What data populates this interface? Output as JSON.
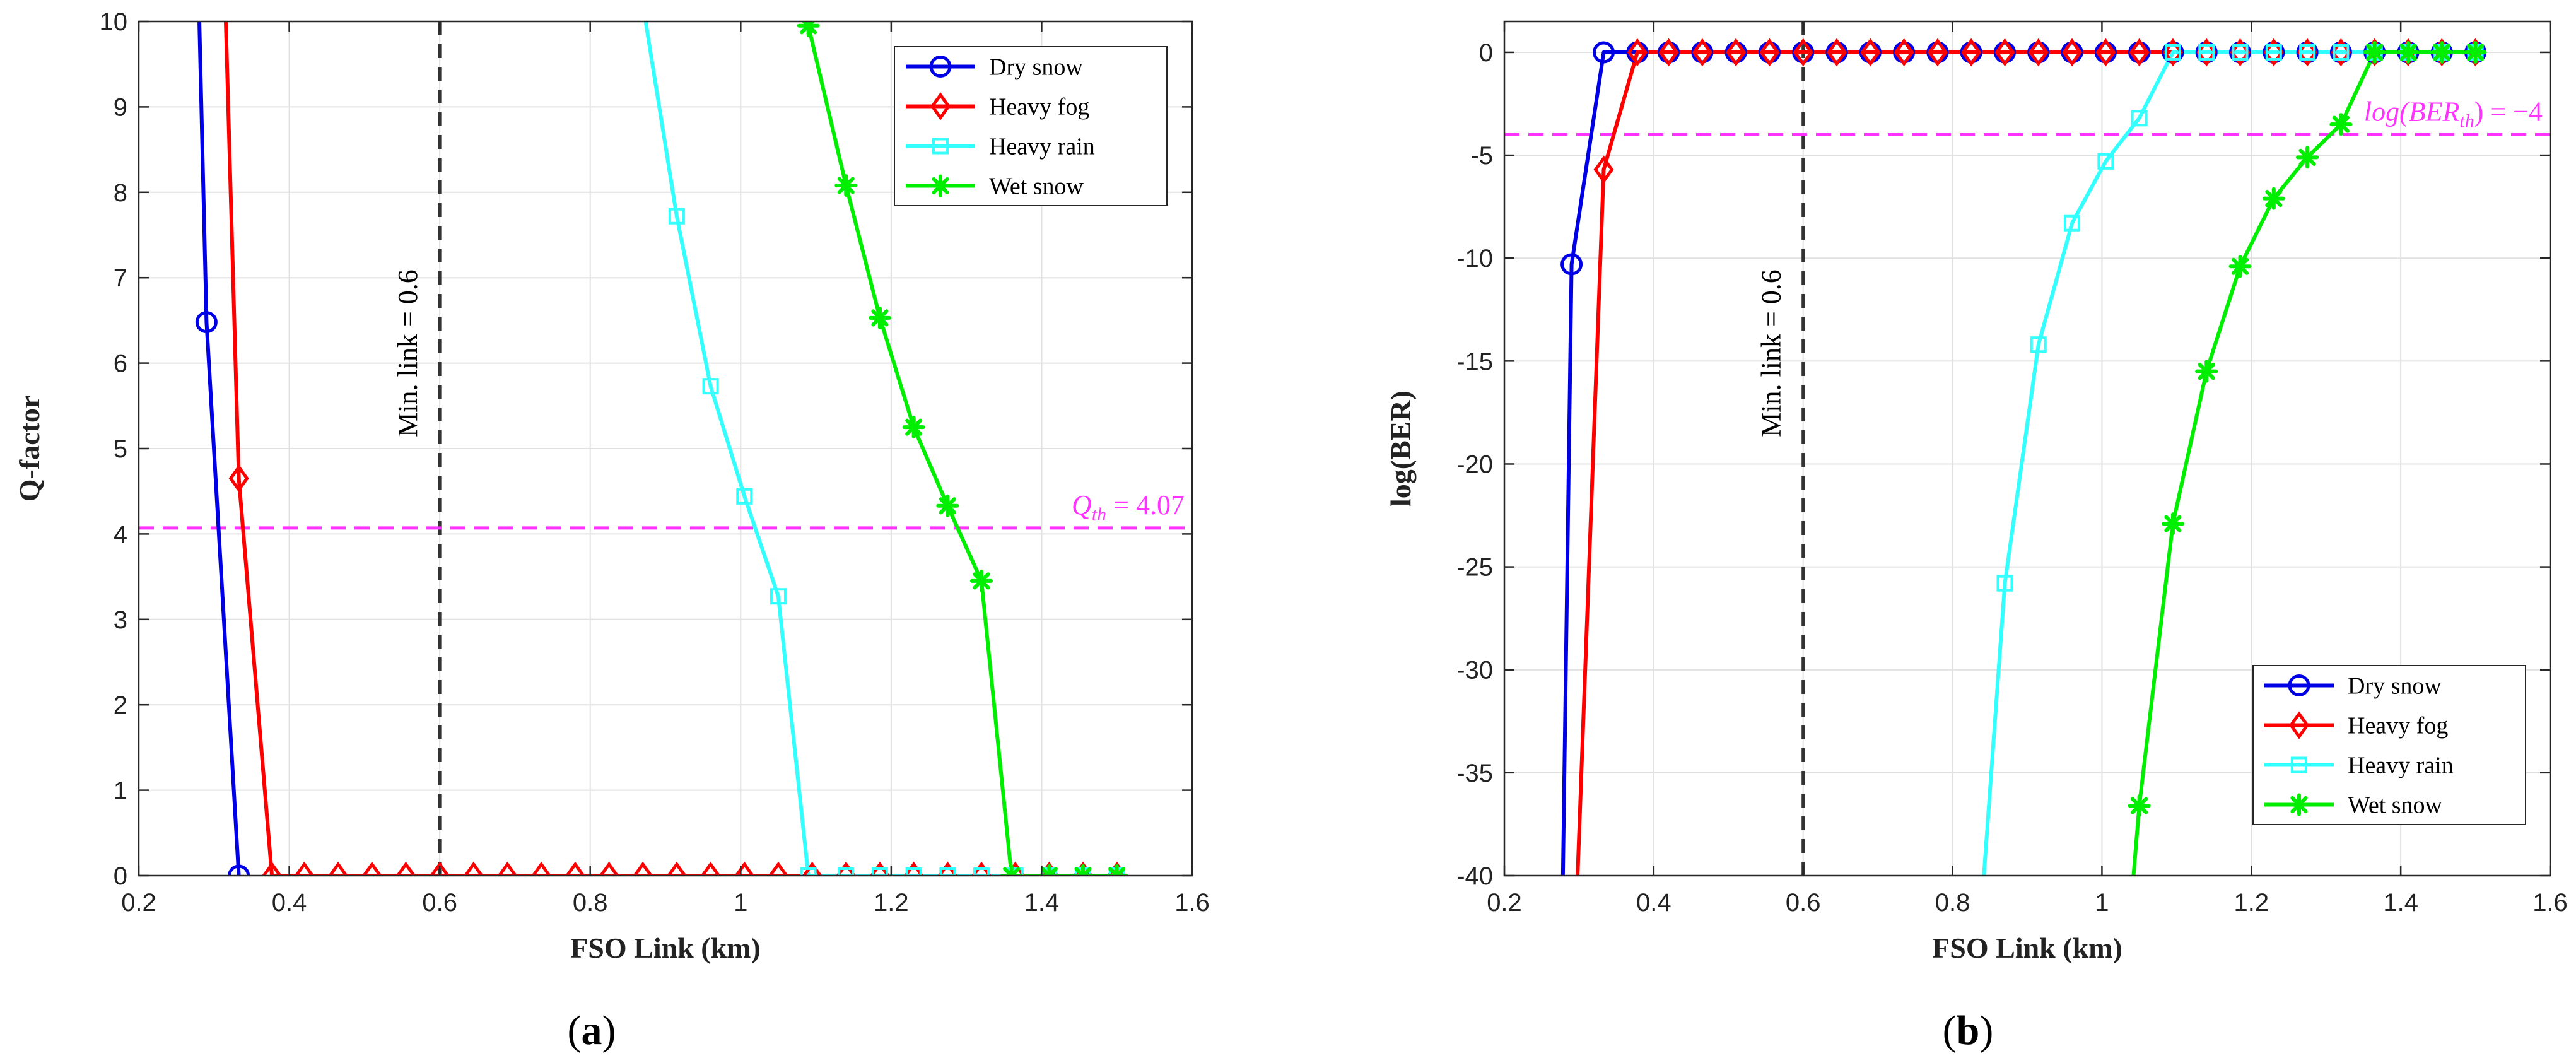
{
  "chart_data": [
    {
      "type": "line",
      "caption": "(a)",
      "xlabel": "FSO Link (km)",
      "ylabel": "Q-factor",
      "xlim": [
        0.2,
        1.6
      ],
      "ylim": [
        0,
        10
      ],
      "xticks": [
        0.2,
        0.4,
        0.6,
        0.8,
        1,
        1.2,
        1.4,
        1.6
      ],
      "xtick_labels": [
        "0.2",
        "0.4",
        "0.6",
        "0.8",
        "1",
        "1.2",
        "1.4",
        "1.6"
      ],
      "yticks": [
        0,
        1,
        2,
        3,
        4,
        5,
        6,
        7,
        8,
        9,
        10
      ],
      "ytick_labels": [
        "0",
        "1",
        "2",
        "3",
        "4",
        "5",
        "6",
        "7",
        "8",
        "9",
        "10"
      ],
      "grid": true,
      "legend_position": "top-right",
      "vline": {
        "x": 0.6,
        "label": "Min. link = 0.6",
        "color": "#333333"
      },
      "hline": {
        "y": 4.07,
        "label": "Q_th = 4.07",
        "label_main": "Q",
        "label_sub": "th",
        "label_rest": " = 4.07",
        "color": "#ff33ff"
      },
      "series": [
        {
          "name": "Dry snow",
          "color": "#0000e6",
          "marker": "circle",
          "x": [
            0.28,
            0.29,
            0.333
          ],
          "y": [
            10.2,
            6.48,
            0
          ],
          "marked": [
            false,
            true,
            true
          ]
        },
        {
          "name": "Heavy fog",
          "color": "#ff0000",
          "marker": "diamond",
          "x": [
            0.315,
            0.333,
            0.377,
            0.42,
            0.465,
            0.51,
            0.555,
            0.6,
            0.645,
            0.69,
            0.735,
            0.78,
            0.825,
            0.87,
            0.915,
            0.96,
            1.005,
            1.05,
            1.095,
            1.14,
            1.185,
            1.23,
            1.275,
            1.32,
            1.365,
            1.41,
            1.455,
            1.5
          ],
          "y": [
            10.2,
            4.65,
            0,
            0,
            0,
            0,
            0,
            0,
            0,
            0,
            0,
            0,
            0,
            0,
            0,
            0,
            0,
            0,
            0,
            0,
            0,
            0,
            0,
            0,
            0,
            0,
            0,
            0
          ],
          "marked": [
            false,
            true,
            true,
            true,
            true,
            true,
            true,
            true,
            true,
            true,
            true,
            true,
            true,
            true,
            true,
            true,
            true,
            true,
            true,
            true,
            true,
            true,
            true,
            true,
            true,
            true,
            true,
            true
          ]
        },
        {
          "name": "Heavy rain",
          "color": "#33ffff",
          "marker": "square",
          "x": [
            0.87,
            0.915,
            0.96,
            1.005,
            1.05,
            1.09,
            1.14,
            1.185,
            1.23,
            1.275,
            1.32,
            1.365,
            1.41,
            1.455,
            1.5
          ],
          "y": [
            10.2,
            7.72,
            5.73,
            4.44,
            3.27,
            0,
            0,
            0,
            0,
            0,
            0,
            0,
            0,
            0,
            0
          ],
          "marked": [
            false,
            true,
            true,
            true,
            true,
            true,
            true,
            true,
            true,
            true,
            true,
            true,
            true,
            true,
            true
          ]
        },
        {
          "name": "Wet snow",
          "color": "#00ee00",
          "marker": "star",
          "x": [
            1.09,
            1.14,
            1.185,
            1.23,
            1.275,
            1.32,
            1.36,
            1.41,
            1.455,
            1.5
          ],
          "y": [
            9.95,
            8.08,
            6.53,
            5.25,
            4.33,
            3.45,
            0,
            0,
            0,
            0
          ],
          "marked": [
            true,
            true,
            true,
            true,
            true,
            true,
            true,
            true,
            true,
            true
          ]
        }
      ]
    },
    {
      "type": "line",
      "caption": "(b)",
      "xlabel": "FSO Link (km)",
      "ylabel": "log(BER)",
      "xlim": [
        0.2,
        1.6
      ],
      "ylim": [
        -40,
        1.5
      ],
      "xticks": [
        0.2,
        0.4,
        0.6,
        0.8,
        1,
        1.2,
        1.4,
        1.6
      ],
      "xtick_labels": [
        "0.2",
        "0.4",
        "0.6",
        "0.8",
        "1",
        "1.2",
        "1.4",
        "1.6"
      ],
      "yticks": [
        0,
        -5,
        -10,
        -15,
        -20,
        -25,
        -30,
        -35,
        -40
      ],
      "ytick_labels": [
        "0",
        "-5",
        "-10",
        "-15",
        "-20",
        "-25",
        "-30",
        "-35",
        "-40"
      ],
      "grid": true,
      "legend_position": "bottom-right",
      "vline": {
        "x": 0.6,
        "label": "Min. link = 0.6",
        "color": "#333333"
      },
      "hline": {
        "y": -4,
        "label": "log(BER_th) = -4",
        "label_main": "log(BER",
        "label_sub": "th",
        "label_rest": ") = −4",
        "color": "#ff33ff"
      },
      "series": [
        {
          "name": "Dry snow",
          "color": "#0000e6",
          "marker": "circle",
          "x": [
            0.278,
            0.29,
            0.333,
            0.378,
            0.42,
            0.465,
            0.51,
            0.555,
            0.6,
            0.645,
            0.69,
            0.735,
            0.78,
            0.825,
            0.87,
            0.915,
            0.96,
            1.005,
            1.05,
            1.095,
            1.14,
            1.185,
            1.23,
            1.275,
            1.32,
            1.365,
            1.41,
            1.455,
            1.5
          ],
          "y": [
            -41,
            -10.3,
            0,
            0,
            0,
            0,
            0,
            0,
            0,
            0,
            0,
            0,
            0,
            0,
            0,
            0,
            0,
            0,
            0,
            0,
            0,
            0,
            0,
            0,
            0,
            0,
            0,
            0,
            0
          ],
          "marked": [
            false,
            true,
            true,
            true,
            true,
            true,
            true,
            true,
            true,
            true,
            true,
            true,
            true,
            true,
            true,
            true,
            true,
            true,
            true,
            true,
            true,
            true,
            true,
            true,
            true,
            true,
            true,
            true,
            true
          ]
        },
        {
          "name": "Heavy fog",
          "color": "#ff0000",
          "marker": "diamond",
          "x": [
            0.297,
            0.333,
            0.378,
            0.42,
            0.465,
            0.51,
            0.555,
            0.6,
            0.645,
            0.69,
            0.735,
            0.78,
            0.825,
            0.87,
            0.915,
            0.96,
            1.005,
            1.05,
            1.095,
            1.14,
            1.185,
            1.23,
            1.275,
            1.32,
            1.365,
            1.41,
            1.455,
            1.5
          ],
          "y": [
            -41,
            -5.7,
            0,
            0,
            0,
            0,
            0,
            0,
            0,
            0,
            0,
            0,
            0,
            0,
            0,
            0,
            0,
            0,
            0,
            0,
            0,
            0,
            0,
            0,
            0,
            0,
            0,
            0
          ],
          "marked": [
            false,
            true,
            true,
            true,
            true,
            true,
            true,
            true,
            true,
            true,
            true,
            true,
            true,
            true,
            true,
            true,
            true,
            true,
            true,
            true,
            true,
            true,
            true,
            true,
            true,
            true,
            true,
            true
          ]
        },
        {
          "name": "Heavy rain",
          "color": "#33ffff",
          "marker": "square",
          "x": [
            0.84,
            0.87,
            0.915,
            0.96,
            1.005,
            1.05,
            1.095,
            1.14,
            1.185,
            1.23,
            1.275,
            1.32,
            1.365,
            1.41,
            1.455,
            1.5
          ],
          "y": [
            -41,
            -25.8,
            -14.2,
            -8.3,
            -5.3,
            -3.2,
            0,
            0,
            0,
            0,
            0,
            0,
            0,
            0,
            0,
            0
          ],
          "marked": [
            false,
            true,
            true,
            true,
            true,
            true,
            true,
            true,
            true,
            true,
            true,
            true,
            true,
            true,
            true,
            true
          ]
        },
        {
          "name": "Wet snow",
          "color": "#00ee00",
          "marker": "star",
          "x": [
            1.04,
            1.05,
            1.095,
            1.14,
            1.185,
            1.23,
            1.275,
            1.32,
            1.365,
            1.41,
            1.455,
            1.5
          ],
          "y": [
            -41,
            -36.6,
            -22.9,
            -15.5,
            -10.4,
            -7.1,
            -5.1,
            -3.5,
            0,
            0,
            0,
            0
          ],
          "marked": [
            false,
            true,
            true,
            true,
            true,
            true,
            true,
            true,
            true,
            true,
            true,
            true
          ]
        }
      ]
    }
  ]
}
